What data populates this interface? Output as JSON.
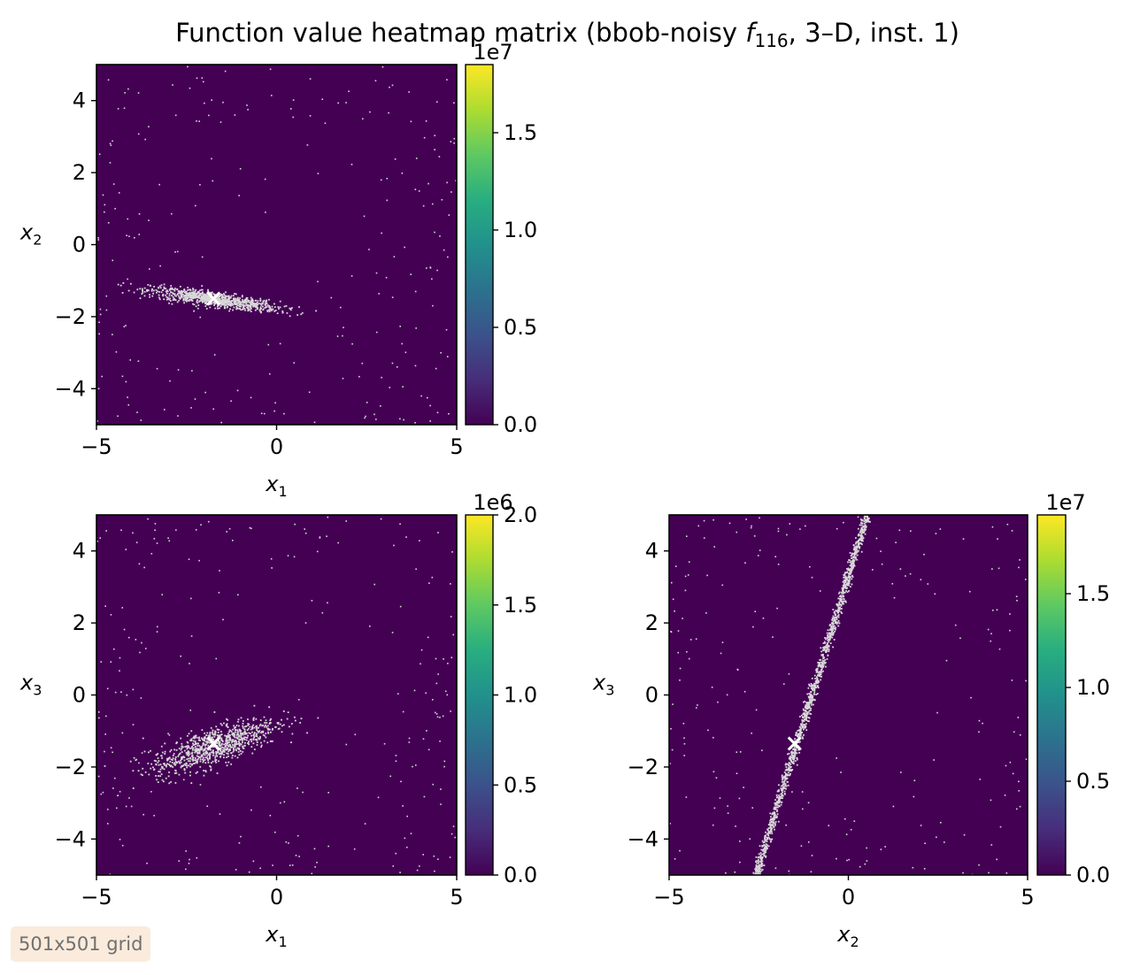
{
  "figure": {
    "title_prefix": "Function value heatmap matrix (bbob-noisy ",
    "title_func_letter": "f",
    "title_func_sub": "116",
    "title_suffix": ", 3–D, inst. 1)",
    "grid_label": "501x501 grid"
  },
  "colors": {
    "background_field": "#440154",
    "noise_points": "#d8d8d8",
    "optimum_marker": "#ffffff",
    "colormap": "viridis"
  },
  "chart_data": [
    {
      "type": "heatmap",
      "id": "x1-x2",
      "xlabel_var": "x",
      "xlabel_sub": "1",
      "ylabel_var": "x",
      "ylabel_sub": "2",
      "xlim": [
        -5,
        5
      ],
      "ylim": [
        -5,
        5
      ],
      "xticks": [
        -5,
        0,
        5
      ],
      "xtick_labels": [
        "−5",
        "0",
        "5"
      ],
      "yticks": [
        -4,
        -2,
        0,
        2,
        4
      ],
      "ytick_labels": [
        "−4",
        "−2",
        "0",
        "2",
        "4"
      ],
      "optimum": [
        -1.75,
        -1.5
      ],
      "noise_band": {
        "shape": "ellipse",
        "center": [
          -1.75,
          -1.5
        ],
        "half_axes": [
          2.0,
          0.22
        ],
        "angle_deg": -8
      },
      "colorbar": {
        "min": 0,
        "max": 18500000,
        "ticks": [
          0,
          5000000,
          10000000,
          15000000
        ],
        "tick_labels": [
          "0.0",
          "0.5",
          "1.0",
          "1.5"
        ],
        "offset_label": "1e7"
      }
    },
    {
      "type": "heatmap",
      "id": "x1-x3",
      "xlabel_var": "x",
      "xlabel_sub": "1",
      "ylabel_var": "x",
      "ylabel_sub": "3",
      "xlim": [
        -5,
        5
      ],
      "ylim": [
        -5,
        5
      ],
      "xticks": [
        -5,
        0,
        5
      ],
      "xtick_labels": [
        "−5",
        "0",
        "5"
      ],
      "yticks": [
        -4,
        -2,
        0,
        2,
        4
      ],
      "ytick_labels": [
        "−4",
        "−2",
        "0",
        "2",
        "4"
      ],
      "optimum": [
        -1.75,
        -1.35
      ],
      "noise_band": {
        "shape": "ellipse",
        "center": [
          -1.75,
          -1.4
        ],
        "half_axes": [
          2.0,
          0.55
        ],
        "angle_deg": 20
      },
      "colorbar": {
        "min": 0,
        "max": 2000000,
        "ticks": [
          0,
          500000,
          1000000,
          1500000,
          2000000
        ],
        "tick_labels": [
          "0.0",
          "0.5",
          "1.0",
          "1.5",
          "2.0"
        ],
        "offset_label": "1e6"
      }
    },
    {
      "type": "heatmap",
      "id": "x2-x3",
      "xlabel_var": "x",
      "xlabel_sub": "2",
      "ylabel_var": "x",
      "ylabel_sub": "3",
      "xlim": [
        -5,
        5
      ],
      "ylim": [
        -5,
        5
      ],
      "xticks": [
        -5,
        0,
        5
      ],
      "xtick_labels": [
        "−5",
        "0",
        "5"
      ],
      "yticks": [
        -4,
        -2,
        0,
        2,
        4
      ],
      "ytick_labels": [
        "−4",
        "−2",
        "0",
        "2",
        "4"
      ],
      "optimum": [
        -1.5,
        -1.35
      ],
      "noise_band": {
        "shape": "line",
        "from": [
          -2.6,
          -5
        ],
        "to": [
          0.5,
          5
        ]
      },
      "colorbar": {
        "min": 0,
        "max": 19200000,
        "ticks": [
          0,
          5000000,
          10000000,
          15000000
        ],
        "tick_labels": [
          "0.0",
          "0.5",
          "1.0",
          "1.5"
        ],
        "offset_label": "1e7"
      }
    }
  ]
}
